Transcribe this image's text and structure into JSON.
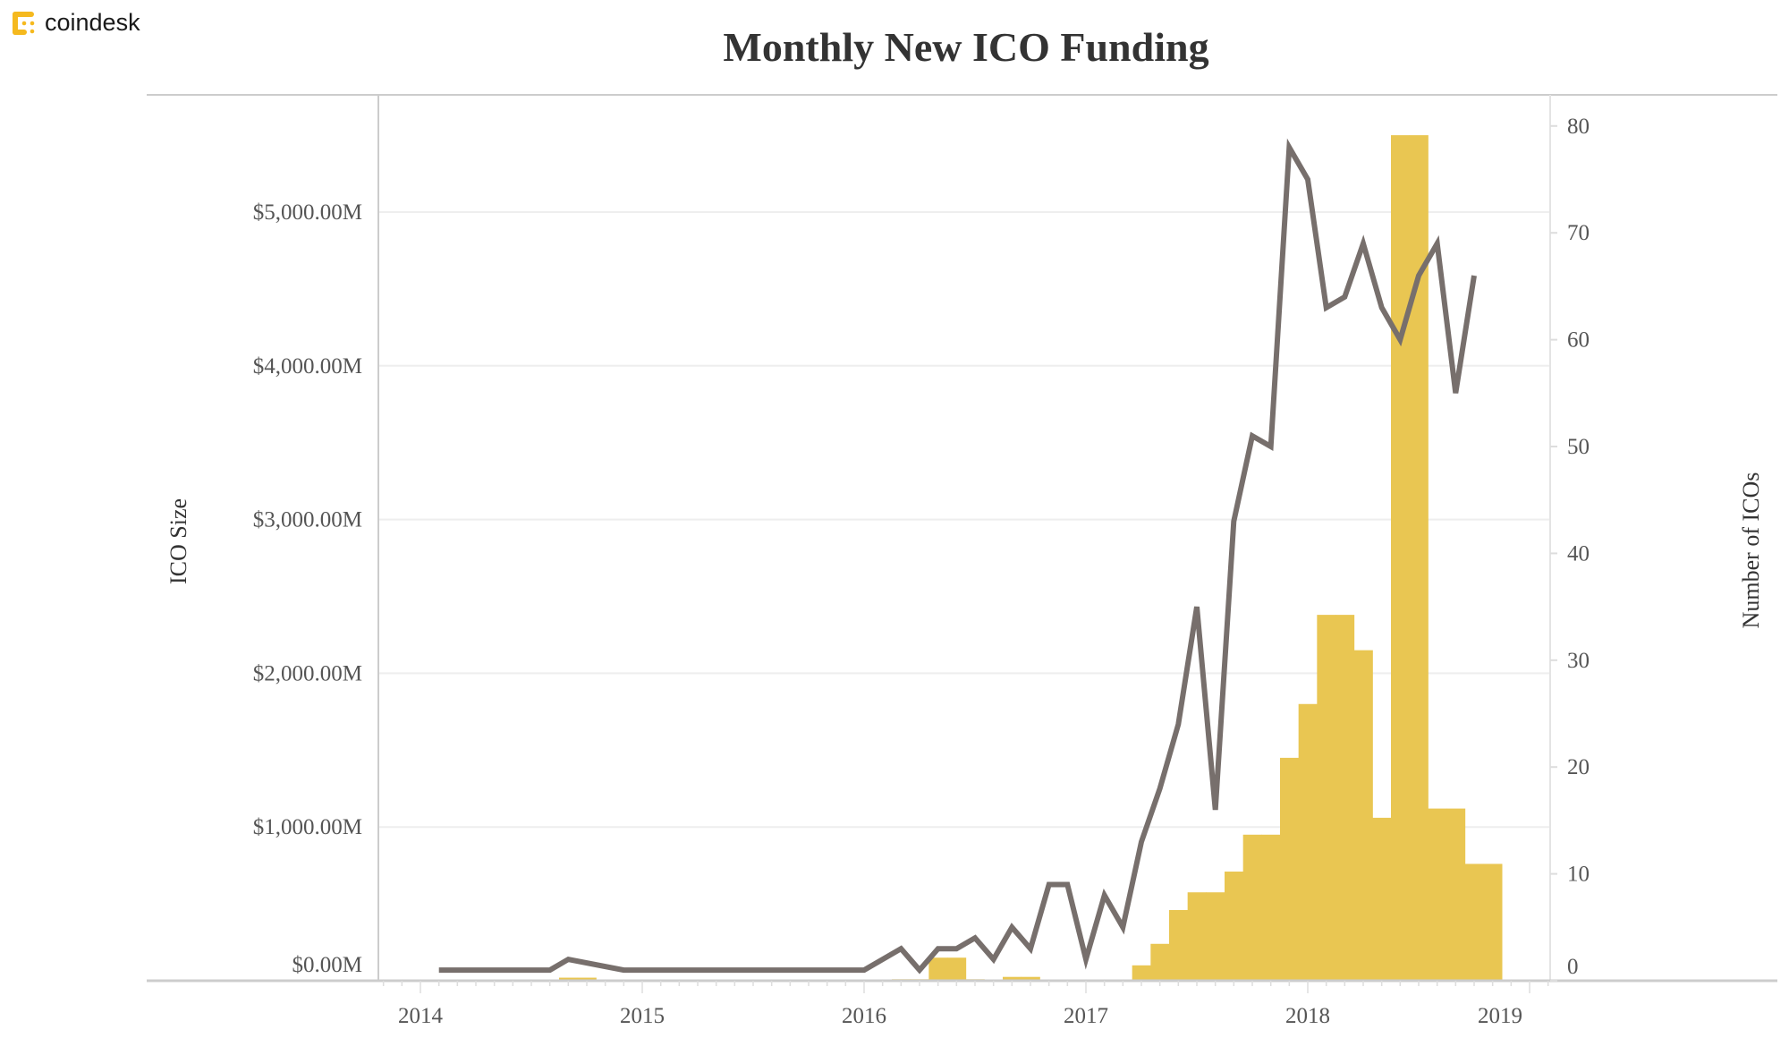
{
  "brand": {
    "name": "coindesk",
    "color": "#F5B91E"
  },
  "chart_data": {
    "type": "bar+line",
    "title": "Monthly New ICO Funding",
    "ylabel": "ICO Size",
    "y2label": "Number of ICOs",
    "x_ticks": [
      "2014",
      "2015",
      "2016",
      "2017",
      "2018",
      "2019"
    ],
    "y_ticks": [
      "$0.00M",
      "$1,000.00M",
      "$2,000.00M",
      "$3,000.00M",
      "$4,000.00M",
      "$5,000.00M"
    ],
    "y_tick_values": [
      0,
      1000,
      2000,
      3000,
      4000,
      5000
    ],
    "y2_ticks": [
      "0",
      "10",
      "20",
      "30",
      "40",
      "50",
      "60",
      "70",
      "80"
    ],
    "y2_tick_values": [
      0,
      10,
      20,
      30,
      40,
      50,
      60,
      70,
      80
    ],
    "ylim": [
      0,
      5700
    ],
    "y2lim": [
      0,
      82
    ],
    "xlim": [
      "2013-08",
      "2020-03"
    ],
    "grid": true,
    "colors": {
      "bars": "#E9C652",
      "line": "#776F6C"
    },
    "series": [
      {
        "type": "bar",
        "axis": "left",
        "unit": "$M",
        "points": [
          [
            "2014-09",
            20
          ],
          [
            "2014-10",
            20
          ],
          [
            "2016-03",
            10
          ],
          [
            "2016-04",
            10
          ],
          [
            "2016-05",
            150
          ],
          [
            "2016-06",
            150
          ],
          [
            "2016-07",
            10
          ],
          [
            "2016-09",
            25
          ],
          [
            "2016-10",
            25
          ],
          [
            "2016-11",
            8
          ],
          [
            "2016-12",
            8
          ],
          [
            "2017-02",
            5
          ],
          [
            "2017-03",
            5
          ],
          [
            "2017-04",
            100
          ],
          [
            "2017-05",
            240
          ],
          [
            "2017-06",
            460
          ],
          [
            "2017-07",
            575
          ],
          [
            "2017-08",
            575
          ],
          [
            "2017-09",
            710
          ],
          [
            "2017-10",
            950
          ],
          [
            "2017-11",
            950
          ],
          [
            "2017-12",
            1450
          ],
          [
            "2018-01",
            1800
          ],
          [
            "2018-02",
            2380
          ],
          [
            "2018-03",
            2380
          ],
          [
            "2018-04",
            2150
          ],
          [
            "2018-05",
            1060
          ],
          [
            "2018-06",
            5500
          ],
          [
            "2018-07",
            5500
          ],
          [
            "2018-08",
            1120
          ],
          [
            "2018-09",
            1120
          ],
          [
            "2018-10",
            760
          ],
          [
            "2018-11",
            760
          ]
        ]
      },
      {
        "type": "line",
        "axis": "right",
        "points": [
          [
            "2014-02",
            1
          ],
          [
            "2014-08",
            1
          ],
          [
            "2014-09",
            2
          ],
          [
            "2014-12",
            1
          ],
          [
            "2016-01",
            1
          ],
          [
            "2016-03",
            3
          ],
          [
            "2016-04",
            1
          ],
          [
            "2016-05",
            3
          ],
          [
            "2016-06",
            3
          ],
          [
            "2016-07",
            4
          ],
          [
            "2016-08",
            2
          ],
          [
            "2016-09",
            5
          ],
          [
            "2016-10",
            3
          ],
          [
            "2016-11",
            9
          ],
          [
            "2016-12",
            9
          ],
          [
            "2017-01",
            2
          ],
          [
            "2017-02",
            8
          ],
          [
            "2017-03",
            5
          ],
          [
            "2017-04",
            13
          ],
          [
            "2017-05",
            18
          ],
          [
            "2017-06",
            24
          ],
          [
            "2017-07",
            35
          ],
          [
            "2017-08",
            16
          ],
          [
            "2017-09",
            43
          ],
          [
            "2017-10",
            51
          ],
          [
            "2017-11",
            50
          ],
          [
            "2017-12",
            78
          ],
          [
            "2018-01",
            75
          ],
          [
            "2018-02",
            63
          ],
          [
            "2018-03",
            64
          ],
          [
            "2018-04",
            69
          ],
          [
            "2018-05",
            63
          ],
          [
            "2018-06",
            60
          ],
          [
            "2018-07",
            66
          ],
          [
            "2018-08",
            69
          ],
          [
            "2018-09",
            55
          ],
          [
            "2018-10",
            66
          ]
        ]
      }
    ]
  }
}
